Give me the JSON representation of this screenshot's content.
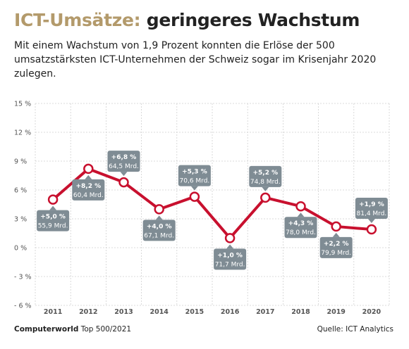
{
  "header": {
    "title_accent": "ICT-Umsätze:",
    "title_rest": "geringeres Wachstum",
    "subtitle": "Mit einem Wachstum von 1,9 Prozent konnten die Erlöse der 500 umsatzstärksten ICT-Unternehmen der Schweiz sogar im Krisenjahr 2020 zulegen."
  },
  "footer": {
    "brand": "Computerworld",
    "brand_suffix": "Top 500/2021",
    "source": "Quelle: ICT Analytics"
  },
  "colors": {
    "line": "#c8102e",
    "label_box": "#7f8c94",
    "accent": "#b39a6b",
    "grid": "#d0d0d0"
  },
  "chart_data": {
    "type": "line",
    "x": [
      "2011",
      "2012",
      "2013",
      "2014",
      "2015",
      "2016",
      "2017",
      "2018",
      "2019",
      "2020"
    ],
    "values": [
      5.0,
      8.2,
      6.8,
      4.0,
      5.3,
      1.0,
      5.2,
      4.3,
      2.2,
      1.9
    ],
    "annotations": [
      {
        "growth": "+5,0 %",
        "revenue": "55,9 Mrd.",
        "position": "below"
      },
      {
        "growth": "+8,2 %",
        "revenue": "60,4 Mrd.",
        "position": "below"
      },
      {
        "growth": "+6,8 %",
        "revenue": "64,5 Mrd.",
        "position": "above"
      },
      {
        "growth": "+4,0 %",
        "revenue": "67,1 Mrd.",
        "position": "below"
      },
      {
        "growth": "+5,3 %",
        "revenue": "70,6 Mrd.",
        "position": "above"
      },
      {
        "growth": "+1,0 %",
        "revenue": "71,7 Mrd.",
        "position": "below"
      },
      {
        "growth": "+5,2 %",
        "revenue": "74,8 Mrd.",
        "position": "above"
      },
      {
        "growth": "+4,3 %",
        "revenue": "78,0 Mrd.",
        "position": "below"
      },
      {
        "growth": "+2,2 %",
        "revenue": "79,9 Mrd.",
        "position": "below"
      },
      {
        "growth": "+1,9 %",
        "revenue": "81,4 Mrd.",
        "position": "above"
      }
    ],
    "yticks": [
      15,
      12,
      9,
      6,
      3,
      0,
      -3,
      -6
    ],
    "ytick_labels": [
      "15 %",
      "12 %",
      "9 %",
      "6 %",
      "3 %",
      "0 %",
      "- 3 %",
      "- 6 %"
    ],
    "ylim": [
      -6,
      15
    ],
    "grid": true
  }
}
